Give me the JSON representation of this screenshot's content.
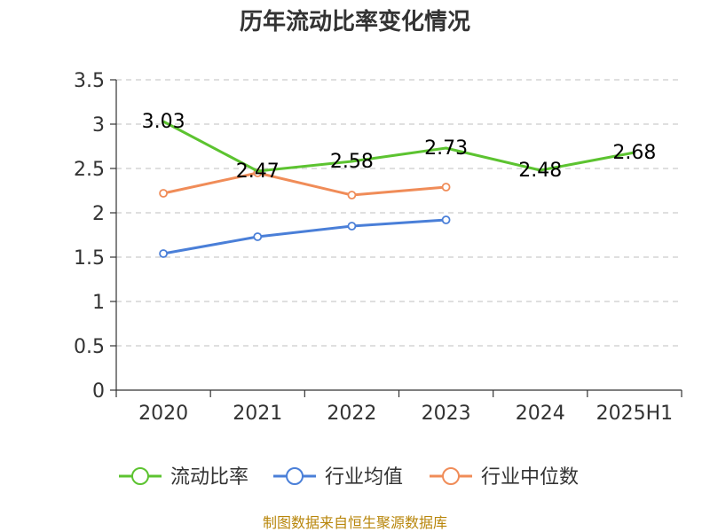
{
  "chart_data": {
    "type": "line",
    "title": "历年流动比率变化情况",
    "xlabel": "",
    "ylabel": "",
    "categories": [
      "2020",
      "2021",
      "2022",
      "2023",
      "2024",
      "2025H1"
    ],
    "ylim": [
      0,
      3.5
    ],
    "yticks": [
      "0",
      "0.5",
      "1",
      "1.5",
      "2",
      "2.5",
      "3",
      "3.5"
    ],
    "grid": true,
    "legend_position": "bottom",
    "series": [
      {
        "name": "流动比率",
        "color": "#5cc330",
        "values": [
          3.03,
          2.47,
          2.58,
          2.73,
          2.48,
          2.68
        ],
        "labels": [
          "3.03",
          "2.47",
          "2.58",
          "2.73",
          "2.48",
          "2.68"
        ]
      },
      {
        "name": "行业均值",
        "color": "#4a7fd8",
        "values": [
          1.54,
          1.73,
          1.85,
          1.92,
          null,
          null
        ]
      },
      {
        "name": "行业中位数",
        "color": "#f08c58",
        "values": [
          2.22,
          2.45,
          2.2,
          2.29,
          null,
          null
        ]
      }
    ]
  },
  "footer": {
    "source": "制图数据来自恒生聚源数据库"
  }
}
